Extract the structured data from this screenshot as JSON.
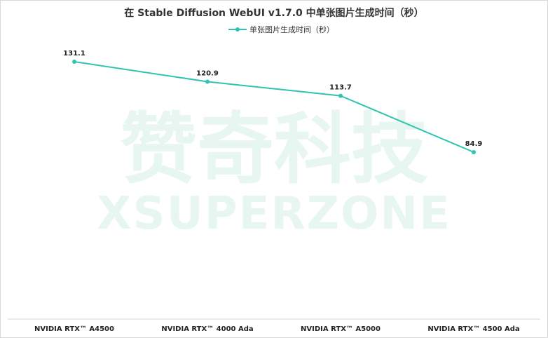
{
  "chart_data": {
    "type": "line",
    "title": "在 Stable Diffusion WebUI v1.7.0 中单张图片生成时间（秒）",
    "categories": [
      "NVIDIA RTX™ A4500",
      "NVIDIA RTX™ 4000 Ada",
      "NVIDIA RTX™ A5000",
      "NVIDIA RTX™ 4500 Ada"
    ],
    "series": [
      {
        "name": "单张图片生成时间（秒）",
        "values": [
          131.1,
          120.9,
          113.7,
          84.9
        ],
        "color": "#2ec4b0"
      }
    ],
    "grid": false,
    "legend_position": "top-center"
  },
  "watermark": {
    "line1": "赞奇科技",
    "line2": "XSUPERZONE"
  }
}
